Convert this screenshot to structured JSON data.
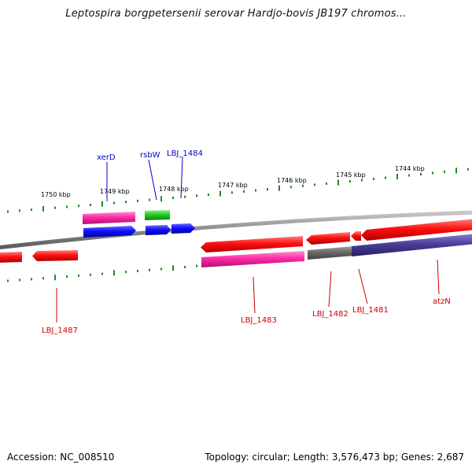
{
  "title": "Leptospira borgpetersenii serovar Hardjo-bovis JB197 chromos...",
  "footer": {
    "accession": "Accession: NC_008510",
    "topology": "Topology: circular; Length: 3,576,473 bp; Genes: 2,687"
  },
  "colors": {
    "backbone": "#8a8a8a",
    "tick": "#1f8a1f",
    "gene_red": "#ff1010",
    "gene_pink": "#ff2aa8",
    "gene_blue": "#1010ff",
    "gene_green": "#22cc22",
    "gene_grey": "#6a6a6a",
    "gene_purple": "#4a3f9a",
    "label_blue": "#0000cc",
    "label_red": "#cc0000"
  },
  "scale_labels": [
    {
      "text": "1750 kbp"
    },
    {
      "text": "1749 kbp"
    },
    {
      "text": "1748 kbp"
    },
    {
      "text": "1747 kbp"
    },
    {
      "text": "1746 kbp"
    },
    {
      "text": "1745 kbp"
    },
    {
      "text": "1744 kbp"
    }
  ],
  "gene_labels": [
    {
      "text": "xerD",
      "strand": "forward"
    },
    {
      "text": "rsbW",
      "strand": "forward"
    },
    {
      "text": "LBJ_1484",
      "strand": "forward"
    },
    {
      "text": "LBJ_1487",
      "strand": "reverse"
    },
    {
      "text": "LBJ_1483",
      "strand": "reverse"
    },
    {
      "text": "LBJ_1482",
      "strand": "reverse"
    },
    {
      "text": "LBJ_1481",
      "strand": "reverse"
    },
    {
      "text": "atzN",
      "strand": "reverse"
    }
  ]
}
